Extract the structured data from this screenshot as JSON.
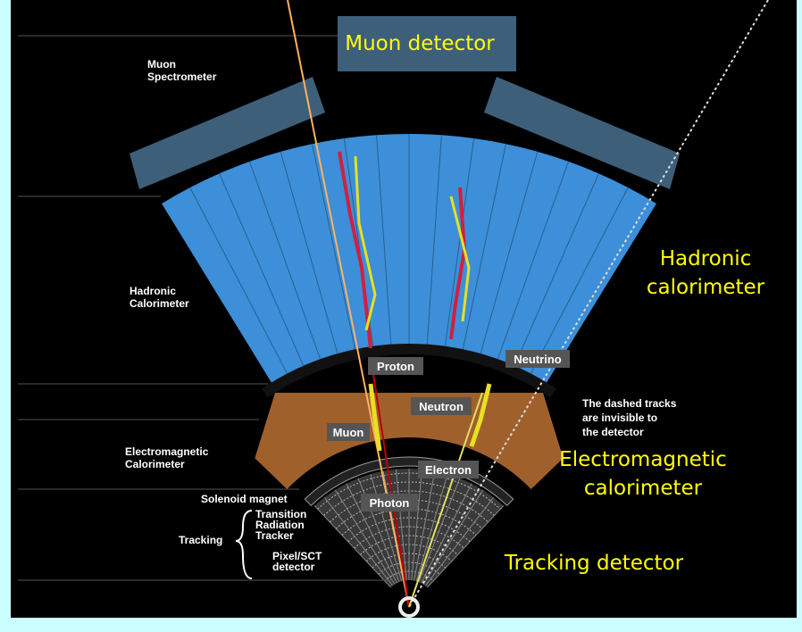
{
  "header": {
    "title": "Muon detector"
  },
  "left_labels": {
    "muon_spectrometer": [
      "Muon",
      "Spectrometer"
    ],
    "hadronic_calorimeter": [
      "Hadronic",
      "Calorimeter"
    ],
    "electromagnetic_calorimeter": [
      "Electromagnetic",
      "Calorimeter"
    ],
    "solenoid_magnet": "Solenoid magnet",
    "tracking": "Tracking",
    "trt": [
      "Transition",
      "Radiation",
      "Tracker"
    ],
    "pixel_sct": [
      "Pixel/SCT",
      "detector"
    ]
  },
  "particles": {
    "proton": "Proton",
    "neutron": "Neutron",
    "muon": "Muon",
    "electron": "Electron",
    "photon": "Photon",
    "neutrino": "Neutrino"
  },
  "note": [
    "The dashed tracks",
    "are invisible to",
    "the detector"
  ],
  "annotations": {
    "hadronic": [
      "Hadronic",
      "calorimeter"
    ],
    "electromagnetic": [
      "Electromagnetic",
      "calorimeter"
    ],
    "tracking": "Tracking detector"
  }
}
